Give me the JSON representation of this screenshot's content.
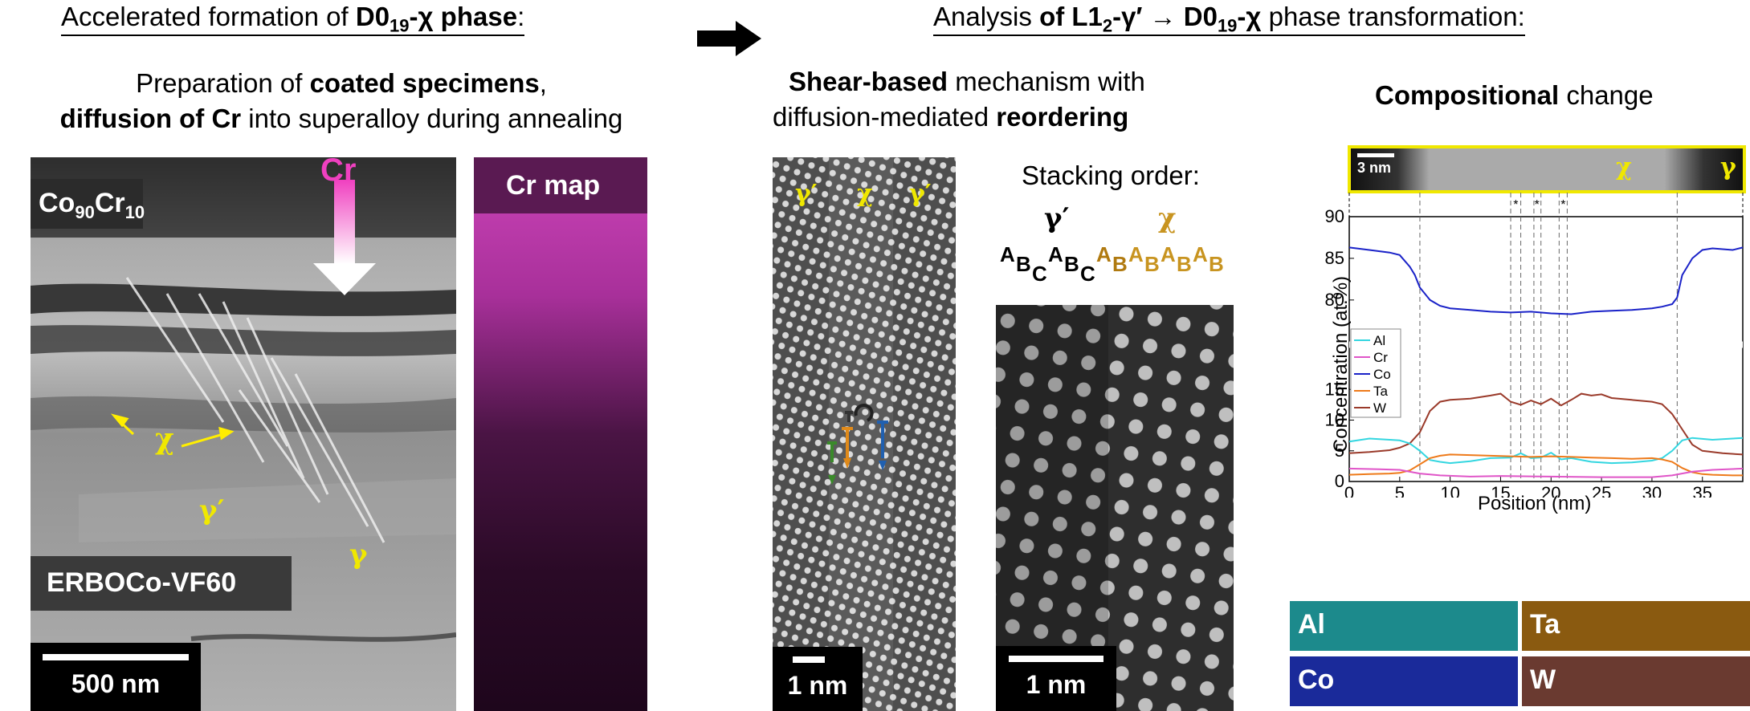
{
  "left": {
    "header": {
      "pre": "Accelerated formation of ",
      "bold1": "D0",
      "sub1": "19",
      "bold2": "-χ phase",
      "post": ":"
    },
    "line1": {
      "pre": "Preparation of ",
      "bold": "coated specimens",
      "post": ","
    },
    "line2": {
      "bold": "diffusion of Cr",
      "post": " into superalloy during annealing"
    },
    "tem": {
      "coating_base": "Co",
      "coating_sub1": "90",
      "coating_el2": "Cr",
      "coating_sub2": "10",
      "cr_arrow_label": "Cr",
      "chi": "χ",
      "gamma_prime": "γ′",
      "gamma": "γ",
      "alloy_label": "ERBOCo-VF60",
      "scale": "500 nm"
    },
    "crmap": {
      "title": "Cr map"
    }
  },
  "right": {
    "header": {
      "pre": "Analysis ",
      "b1": "of L1",
      "s1": "2",
      "b2": "-γ′",
      "arrow": " → ",
      "b3": "D0",
      "s2": "19",
      "b4": "-χ",
      "post": " phase transformation:"
    },
    "shear1": {
      "bold": "Shear-based",
      "post": " mechanism with"
    },
    "shear2": {
      "pre": "diffusion-mediated ",
      "bold": "reordering"
    },
    "stem": {
      "gp1": "γ′",
      "chi": "χ",
      "gp2": "γ′",
      "scale": "1 nm"
    },
    "stacking": {
      "title": "Stacking order:",
      "gamma_prime": "γ′",
      "chi": "χ",
      "seq_gp": [
        "A",
        "B",
        "C",
        "A",
        "B",
        "C"
      ],
      "seq_chi": [
        "A",
        "B",
        "A",
        "B",
        "A",
        "B",
        "A",
        "B"
      ]
    },
    "zoom": {
      "scale": "1 nm"
    },
    "comp": {
      "title_bold": "Compositional",
      "title_post": " change",
      "strip_scale": "3 nm",
      "strip_chi": "χ",
      "strip_gamma": "γ",
      "maps": [
        "Al",
        "Ta",
        "Co",
        "W"
      ]
    }
  },
  "chart_data": {
    "type": "line",
    "xlabel": "Position (nm)",
    "ylabel": "Concentration (at.%)",
    "xlim": [
      0,
      39
    ],
    "xticks": [
      0,
      5,
      10,
      15,
      20,
      25,
      30,
      35
    ],
    "ylim_upper": [
      77,
      90
    ],
    "yticks_upper": [
      80,
      85,
      90
    ],
    "ylim_lower": [
      0,
      17
    ],
    "yticks_lower": [
      0,
      5,
      10,
      15
    ],
    "vlines": [
      7,
      16,
      17,
      18.3,
      19,
      20.8,
      21.6,
      32.5
    ],
    "asterisks": [
      16.5,
      18.6,
      21.2
    ],
    "legend": [
      "Al",
      "Cr",
      "Co",
      "Ta",
      "W"
    ],
    "colors": {
      "Al": "#33d6e0",
      "Cr": "#e055c8",
      "Co": "#1a22c8",
      "Ta": "#ee7a1a",
      "W": "#9a3a2a"
    },
    "series": [
      {
        "name": "Co",
        "x": [
          0,
          2,
          4,
          5,
          6,
          6.5,
          7,
          8,
          9,
          10,
          12,
          14,
          16,
          18,
          20,
          22,
          24,
          26,
          28,
          30,
          31,
          32,
          32.5,
          33,
          34,
          35,
          36,
          37,
          38,
          39
        ],
        "y": [
          86.3,
          86,
          85.7,
          85.4,
          84,
          83,
          81.5,
          80,
          79.3,
          79,
          78.8,
          78.6,
          78.5,
          78.6,
          78.4,
          78.3,
          78.6,
          78.7,
          78.8,
          79,
          79.2,
          79.5,
          80.3,
          83,
          85,
          86,
          86.2,
          86.1,
          86,
          86.3
        ]
      },
      {
        "name": "W",
        "x": [
          0,
          2,
          4,
          5,
          6,
          7,
          8,
          9,
          10,
          12,
          14,
          15,
          16,
          17,
          18,
          19,
          20,
          21,
          22,
          23,
          24,
          25,
          26,
          28,
          30,
          31,
          32,
          33,
          34,
          35,
          37,
          39
        ],
        "y": [
          4.6,
          4.8,
          5.1,
          5.5,
          6.2,
          8,
          11.5,
          13,
          13.3,
          13.5,
          14,
          14.3,
          13,
          12.5,
          13.2,
          12.6,
          13.5,
          12.4,
          13.3,
          14.3,
          14,
          14.2,
          13.6,
          13.3,
          13,
          12.6,
          11,
          8.5,
          6,
          5,
          4.6,
          4.4
        ]
      },
      {
        "name": "Al",
        "x": [
          0,
          2,
          4,
          5,
          6,
          7,
          8,
          9,
          10,
          12,
          14,
          16,
          17,
          18,
          19,
          20,
          21,
          22,
          24,
          26,
          28,
          30,
          31,
          32,
          33,
          34,
          36,
          38,
          39
        ],
        "y": [
          6.5,
          7,
          6.8,
          6.7,
          6.2,
          5,
          3.5,
          3.2,
          3,
          3.3,
          3.8,
          3.9,
          4.6,
          3.8,
          3.9,
          4.7,
          3.6,
          3.8,
          3.2,
          3,
          3.1,
          3.4,
          3.8,
          5,
          6.7,
          7.1,
          6.8,
          7,
          7.1
        ]
      },
      {
        "name": "Ta",
        "x": [
          0,
          2,
          4,
          5,
          6,
          7,
          8,
          9,
          10,
          12,
          14,
          16,
          18,
          20,
          22,
          24,
          26,
          28,
          30,
          31,
          32,
          33,
          34,
          35,
          36,
          38,
          39
        ],
        "y": [
          1.1,
          1.2,
          1.3,
          1.4,
          1.8,
          2.8,
          3.8,
          4.2,
          4.4,
          4.3,
          4.2,
          4.1,
          4,
          4.1,
          4,
          3.9,
          3.8,
          3.7,
          3.8,
          3.6,
          3.2,
          2.2,
          1.5,
          1.2,
          1.1,
          1,
          1
        ]
      },
      {
        "name": "Cr",
        "x": [
          0,
          3,
          5,
          7,
          9,
          12,
          15,
          20,
          25,
          30,
          32,
          34,
          36,
          39
        ],
        "y": [
          2.1,
          2,
          1.9,
          1.3,
          1,
          0.8,
          0.9,
          0.8,
          0.7,
          0.7,
          1,
          1.6,
          1.9,
          2.1
        ]
      }
    ]
  }
}
